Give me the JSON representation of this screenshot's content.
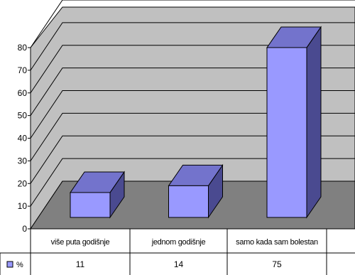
{
  "chart_data": {
    "type": "bar",
    "title": "",
    "xlabel": "",
    "ylabel": "",
    "categories": [
      "više puta godišnje",
      "jednom godišnje",
      "samo kada sam bolestan"
    ],
    "series": [
      {
        "name": "%",
        "values": [
          11,
          14,
          75
        ]
      }
    ],
    "ylim": [
      0,
      80
    ],
    "yticks": [
      0,
      10,
      20,
      30,
      40,
      50,
      60,
      70,
      80
    ],
    "grid": true,
    "data_table": true,
    "colors": {
      "bar_front": "#9999ff",
      "bar_side": "#4a4a90",
      "bar_top": "#7373cc",
      "floor": "#808080",
      "wall": "#c0c0c0",
      "grid": "#000000"
    }
  }
}
